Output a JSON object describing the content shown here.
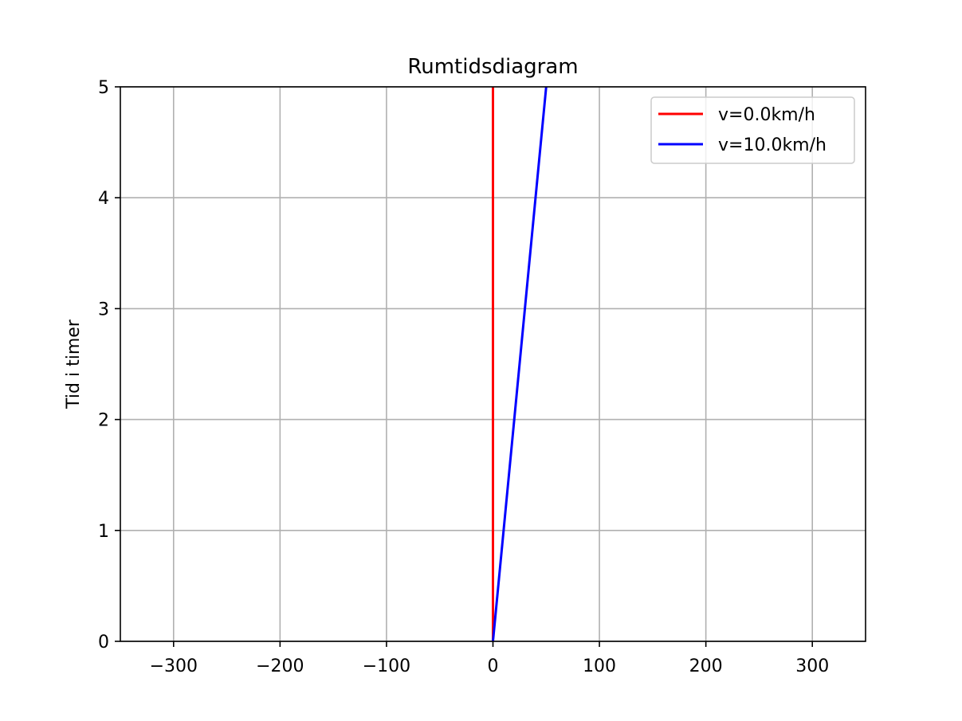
{
  "chart_data": {
    "type": "line",
    "title": "Rumtidsdiagram",
    "xlabel": "",
    "ylabel": "Tid i timer",
    "xlim": [
      -350,
      350
    ],
    "ylim": [
      0,
      5
    ],
    "xticks": [
      -300,
      -200,
      -100,
      0,
      100,
      200,
      300
    ],
    "xtick_labels": [
      "−300",
      "−200",
      "−100",
      "0",
      "100",
      "200",
      "300"
    ],
    "yticks": [
      0,
      1,
      2,
      3,
      4,
      5
    ],
    "ytick_labels": [
      "0",
      "1",
      "2",
      "3",
      "4",
      "5"
    ],
    "grid": true,
    "legend_position": "top-right",
    "series": [
      {
        "name": "v=0.0km/h",
        "color": "#ff0000",
        "x": [
          0,
          0
        ],
        "y": [
          0,
          5
        ]
      },
      {
        "name": "v=10.0km/h",
        "color": "#0000ff",
        "x": [
          0,
          50
        ],
        "y": [
          0,
          5
        ]
      }
    ]
  }
}
